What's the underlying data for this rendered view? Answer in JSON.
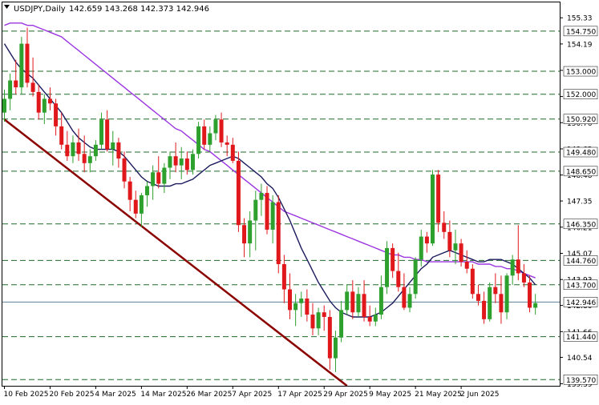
{
  "header": {
    "symbol": "USDJPY,Daily",
    "ohlc": "142.659 143.268 142.373 142.946"
  },
  "colors": {
    "bull": "#2ea02e",
    "bear": "#e0181c",
    "ema_fast": "#1b1b5e",
    "ema_slow": "#9b36e0",
    "trendline": "#8b0000",
    "level_line": "#1f6b2a",
    "current_line": "#5d7f94",
    "frame": "#000000"
  },
  "chart_data": {
    "type": "candlestick",
    "title": "USDJPY,Daily",
    "ylim": [
      139.3,
      156.0
    ],
    "x_tick_labels": [
      "10 Feb 2025",
      "20 Feb 2025",
      "4 Mar 2025",
      "14 Mar 2025",
      "26 Mar 2025",
      "7 Apr 2025",
      "17 Apr 2025",
      "29 Apr 2025",
      "9 May 2025",
      "21 May 2025",
      "2 Jun 2025"
    ],
    "x_tick_candle_index": [
      0,
      8,
      16,
      24,
      32,
      40,
      48,
      56,
      64,
      72,
      80
    ],
    "y_tick_labels": [
      155.33,
      154.19,
      153.04,
      151.9,
      150.76,
      149.62,
      148.48,
      147.35,
      146.21,
      145.07,
      143.93,
      142.8,
      141.66,
      140.54,
      139.39
    ],
    "level_lines": [
      154.75,
      153.0,
      152.0,
      150.92,
      149.48,
      148.65,
      146.35,
      144.76,
      143.7,
      141.44,
      139.57
    ],
    "current_price": 142.946,
    "candles": [
      {
        "o": 151.2,
        "h": 152.2,
        "l": 150.8,
        "c": 151.8
      },
      {
        "o": 151.8,
        "h": 152.9,
        "l": 151.3,
        "c": 152.6
      },
      {
        "o": 152.6,
        "h": 153.5,
        "l": 152.0,
        "c": 152.3
      },
      {
        "o": 152.3,
        "h": 154.5,
        "l": 152.0,
        "c": 154.2
      },
      {
        "o": 154.2,
        "h": 154.9,
        "l": 152.3,
        "c": 152.5
      },
      {
        "o": 152.5,
        "h": 153.6,
        "l": 151.9,
        "c": 152.1
      },
      {
        "o": 152.1,
        "h": 152.4,
        "l": 150.9,
        "c": 151.2
      },
      {
        "o": 151.2,
        "h": 152.0,
        "l": 150.7,
        "c": 151.8
      },
      {
        "o": 151.8,
        "h": 152.3,
        "l": 151.3,
        "c": 151.6
      },
      {
        "o": 151.6,
        "h": 151.8,
        "l": 150.2,
        "c": 150.6
      },
      {
        "o": 150.6,
        "h": 151.2,
        "l": 149.6,
        "c": 149.8
      },
      {
        "o": 149.8,
        "h": 150.4,
        "l": 149.1,
        "c": 149.3
      },
      {
        "o": 149.3,
        "h": 150.2,
        "l": 149.0,
        "c": 149.9
      },
      {
        "o": 149.9,
        "h": 150.5,
        "l": 149.1,
        "c": 149.4
      },
      {
        "o": 149.4,
        "h": 150.2,
        "l": 148.6,
        "c": 149.0
      },
      {
        "o": 149.0,
        "h": 149.6,
        "l": 148.6,
        "c": 149.3
      },
      {
        "o": 149.3,
        "h": 150.0,
        "l": 149.1,
        "c": 149.8
      },
      {
        "o": 149.8,
        "h": 151.2,
        "l": 149.6,
        "c": 150.9
      },
      {
        "o": 150.9,
        "h": 151.3,
        "l": 149.5,
        "c": 149.6
      },
      {
        "o": 149.6,
        "h": 150.4,
        "l": 148.9,
        "c": 149.9
      },
      {
        "o": 149.9,
        "h": 150.1,
        "l": 148.8,
        "c": 149.2
      },
      {
        "o": 149.2,
        "h": 149.5,
        "l": 147.9,
        "c": 148.2
      },
      {
        "o": 148.2,
        "h": 148.4,
        "l": 146.9,
        "c": 147.4
      },
      {
        "o": 147.4,
        "h": 147.8,
        "l": 146.6,
        "c": 146.8
      },
      {
        "o": 146.8,
        "h": 147.7,
        "l": 146.2,
        "c": 147.6
      },
      {
        "o": 147.6,
        "h": 148.2,
        "l": 147.1,
        "c": 148.0
      },
      {
        "o": 148.0,
        "h": 148.9,
        "l": 147.4,
        "c": 148.6
      },
      {
        "o": 148.6,
        "h": 149.3,
        "l": 147.9,
        "c": 148.1
      },
      {
        "o": 148.1,
        "h": 149.0,
        "l": 147.7,
        "c": 148.8
      },
      {
        "o": 148.8,
        "h": 149.5,
        "l": 148.3,
        "c": 149.3
      },
      {
        "o": 149.3,
        "h": 149.9,
        "l": 148.6,
        "c": 148.9
      },
      {
        "o": 148.9,
        "h": 149.7,
        "l": 148.3,
        "c": 149.2
      },
      {
        "o": 149.2,
        "h": 149.5,
        "l": 148.5,
        "c": 148.7
      },
      {
        "o": 148.7,
        "h": 149.6,
        "l": 148.5,
        "c": 149.4
      },
      {
        "o": 149.4,
        "h": 150.8,
        "l": 149.2,
        "c": 150.6
      },
      {
        "o": 150.6,
        "h": 150.9,
        "l": 149.6,
        "c": 149.8
      },
      {
        "o": 149.8,
        "h": 150.6,
        "l": 149.5,
        "c": 150.3
      },
      {
        "o": 150.3,
        "h": 151.1,
        "l": 150.0,
        "c": 150.9
      },
      {
        "o": 150.9,
        "h": 151.2,
        "l": 149.7,
        "c": 149.9
      },
      {
        "o": 149.9,
        "h": 150.2,
        "l": 149.3,
        "c": 149.8
      },
      {
        "o": 149.8,
        "h": 150.1,
        "l": 149.0,
        "c": 149.1
      },
      {
        "o": 149.1,
        "h": 149.5,
        "l": 146.0,
        "c": 146.3
      },
      {
        "o": 146.3,
        "h": 146.6,
        "l": 144.9,
        "c": 145.5
      },
      {
        "o": 145.5,
        "h": 146.9,
        "l": 144.9,
        "c": 146.5
      },
      {
        "o": 146.5,
        "h": 147.8,
        "l": 145.2,
        "c": 147.4
      },
      {
        "o": 147.4,
        "h": 148.1,
        "l": 146.7,
        "c": 147.7
      },
      {
        "o": 147.7,
        "h": 148.0,
        "l": 145.9,
        "c": 146.1
      },
      {
        "o": 146.1,
        "h": 147.6,
        "l": 145.5,
        "c": 147.3
      },
      {
        "o": 147.3,
        "h": 147.6,
        "l": 144.2,
        "c": 144.6
      },
      {
        "o": 144.6,
        "h": 145.0,
        "l": 142.9,
        "c": 143.5
      },
      {
        "o": 143.5,
        "h": 144.2,
        "l": 142.2,
        "c": 142.6
      },
      {
        "o": 142.6,
        "h": 143.3,
        "l": 141.9,
        "c": 142.9
      },
      {
        "o": 142.9,
        "h": 143.4,
        "l": 142.3,
        "c": 143.1
      },
      {
        "o": 143.1,
        "h": 143.5,
        "l": 142.1,
        "c": 142.4
      },
      {
        "o": 142.4,
        "h": 142.9,
        "l": 141.5,
        "c": 141.8
      },
      {
        "o": 141.8,
        "h": 142.7,
        "l": 141.5,
        "c": 142.5
      },
      {
        "o": 142.5,
        "h": 142.8,
        "l": 141.7,
        "c": 142.3
      },
      {
        "o": 142.3,
        "h": 142.6,
        "l": 140.0,
        "c": 140.5
      },
      {
        "o": 140.5,
        "h": 141.7,
        "l": 139.9,
        "c": 141.4
      },
      {
        "o": 141.4,
        "h": 143.0,
        "l": 141.2,
        "c": 142.6
      },
      {
        "o": 142.6,
        "h": 143.7,
        "l": 142.4,
        "c": 143.4
      },
      {
        "o": 143.4,
        "h": 143.9,
        "l": 142.2,
        "c": 142.5
      },
      {
        "o": 142.5,
        "h": 143.6,
        "l": 142.3,
        "c": 143.3
      },
      {
        "o": 143.3,
        "h": 143.9,
        "l": 142.1,
        "c": 142.3
      },
      {
        "o": 142.3,
        "h": 142.8,
        "l": 141.9,
        "c": 142.1
      },
      {
        "o": 142.1,
        "h": 142.7,
        "l": 141.9,
        "c": 142.4
      },
      {
        "o": 142.4,
        "h": 144.1,
        "l": 142.2,
        "c": 143.6
      },
      {
        "o": 143.6,
        "h": 145.6,
        "l": 143.3,
        "c": 145.3
      },
      {
        "o": 145.3,
        "h": 145.5,
        "l": 144.0,
        "c": 144.3
      },
      {
        "o": 144.3,
        "h": 145.1,
        "l": 143.4,
        "c": 143.6
      },
      {
        "o": 143.6,
        "h": 144.2,
        "l": 142.6,
        "c": 142.7
      },
      {
        "o": 142.7,
        "h": 143.6,
        "l": 142.5,
        "c": 143.3
      },
      {
        "o": 143.3,
        "h": 144.9,
        "l": 143.1,
        "c": 144.8
      },
      {
        "o": 144.8,
        "h": 146.1,
        "l": 144.5,
        "c": 145.8
      },
      {
        "o": 145.8,
        "h": 146.0,
        "l": 145.1,
        "c": 145.5
      },
      {
        "o": 145.5,
        "h": 148.7,
        "l": 145.4,
        "c": 148.5
      },
      {
        "o": 148.5,
        "h": 148.7,
        "l": 146.0,
        "c": 146.4
      },
      {
        "o": 146.4,
        "h": 146.9,
        "l": 145.7,
        "c": 146.0
      },
      {
        "o": 146.0,
        "h": 146.5,
        "l": 144.9,
        "c": 145.2
      },
      {
        "o": 145.2,
        "h": 146.1,
        "l": 144.6,
        "c": 145.5
      },
      {
        "o": 145.5,
        "h": 145.7,
        "l": 144.5,
        "c": 144.7
      },
      {
        "o": 144.7,
        "h": 145.2,
        "l": 144.2,
        "c": 144.4
      },
      {
        "o": 144.4,
        "h": 144.6,
        "l": 143.1,
        "c": 143.3
      },
      {
        "o": 143.3,
        "h": 143.7,
        "l": 142.8,
        "c": 143.0
      },
      {
        "o": 143.0,
        "h": 143.4,
        "l": 142.0,
        "c": 142.2
      },
      {
        "o": 142.2,
        "h": 143.8,
        "l": 142.1,
        "c": 143.6
      },
      {
        "o": 143.6,
        "h": 144.2,
        "l": 142.9,
        "c": 143.3
      },
      {
        "o": 143.3,
        "h": 144.1,
        "l": 142.0,
        "c": 142.5
      },
      {
        "o": 142.5,
        "h": 144.2,
        "l": 142.2,
        "c": 144.1
      },
      {
        "o": 144.1,
        "h": 145.0,
        "l": 143.7,
        "c": 144.8
      },
      {
        "o": 144.8,
        "h": 146.3,
        "l": 143.9,
        "c": 144.2
      },
      {
        "o": 144.2,
        "h": 144.6,
        "l": 143.6,
        "c": 143.8
      },
      {
        "o": 143.8,
        "h": 144.1,
        "l": 142.5,
        "c": 142.7
      },
      {
        "o": 142.7,
        "h": 143.3,
        "l": 142.4,
        "c": 142.9
      }
    ],
    "ema_fast": [
      154.2,
      153.8,
      153.4,
      153.1,
      152.9,
      152.7,
      152.4,
      152.1,
      151.8,
      151.5,
      151.2,
      150.8,
      150.4,
      150.1,
      149.9,
      149.7,
      149.6,
      149.6,
      149.6,
      149.6,
      149.5,
      149.3,
      149.0,
      148.7,
      148.4,
      148.2,
      148.1,
      148.0,
      148.0,
      148.0,
      148.1,
      148.1,
      148.2,
      148.3,
      148.5,
      148.7,
      148.9,
      149.0,
      149.1,
      149.2,
      149.3,
      149.2,
      149.0,
      148.8,
      148.6,
      148.4,
      148.1,
      147.9,
      147.5,
      147.0,
      146.5,
      145.9,
      145.3,
      144.8,
      144.3,
      143.8,
      143.4,
      143.0,
      142.7,
      142.5,
      142.4,
      142.3,
      142.3,
      142.3,
      142.3,
      142.4,
      142.5,
      142.7,
      142.9,
      143.2,
      143.5,
      143.8,
      144.1,
      144.4,
      144.6,
      144.9,
      145.0,
      145.1,
      145.2,
      145.1,
      145.0,
      144.9,
      144.8,
      144.7,
      144.7,
      144.8,
      144.8,
      144.8,
      144.7,
      144.6,
      144.4,
      144.2,
      144.0,
      143.7
    ],
    "ema_slow": [
      155.0,
      155.1,
      155.1,
      155.1,
      155.0,
      155.0,
      154.9,
      154.8,
      154.7,
      154.6,
      154.5,
      154.3,
      154.1,
      153.9,
      153.7,
      153.5,
      153.3,
      153.1,
      152.9,
      152.7,
      152.5,
      152.3,
      152.1,
      151.9,
      151.7,
      151.5,
      151.3,
      151.1,
      150.9,
      150.7,
      150.5,
      150.4,
      150.2,
      150.0,
      149.8,
      149.6,
      149.5,
      149.3,
      149.1,
      148.9,
      148.7,
      148.5,
      148.3,
      148.1,
      147.9,
      147.7,
      147.5,
      147.3,
      147.1,
      146.9,
      146.8,
      146.7,
      146.6,
      146.5,
      146.4,
      146.3,
      146.2,
      146.1,
      146.0,
      145.9,
      145.8,
      145.7,
      145.6,
      145.5,
      145.4,
      145.3,
      145.2,
      145.1,
      145.0,
      145.0,
      144.9,
      144.9,
      144.8,
      144.8,
      144.7,
      144.7,
      144.7,
      144.7,
      144.7,
      144.7,
      144.7,
      144.7,
      144.7,
      144.6,
      144.6,
      144.6,
      144.5,
      144.5,
      144.4,
      144.4,
      144.3,
      144.2,
      144.1,
      144.0
    ],
    "trendline": {
      "from": {
        "candle": 0,
        "price": 150.9
      },
      "to": {
        "candle": 60,
        "price": 139.3
      }
    }
  }
}
